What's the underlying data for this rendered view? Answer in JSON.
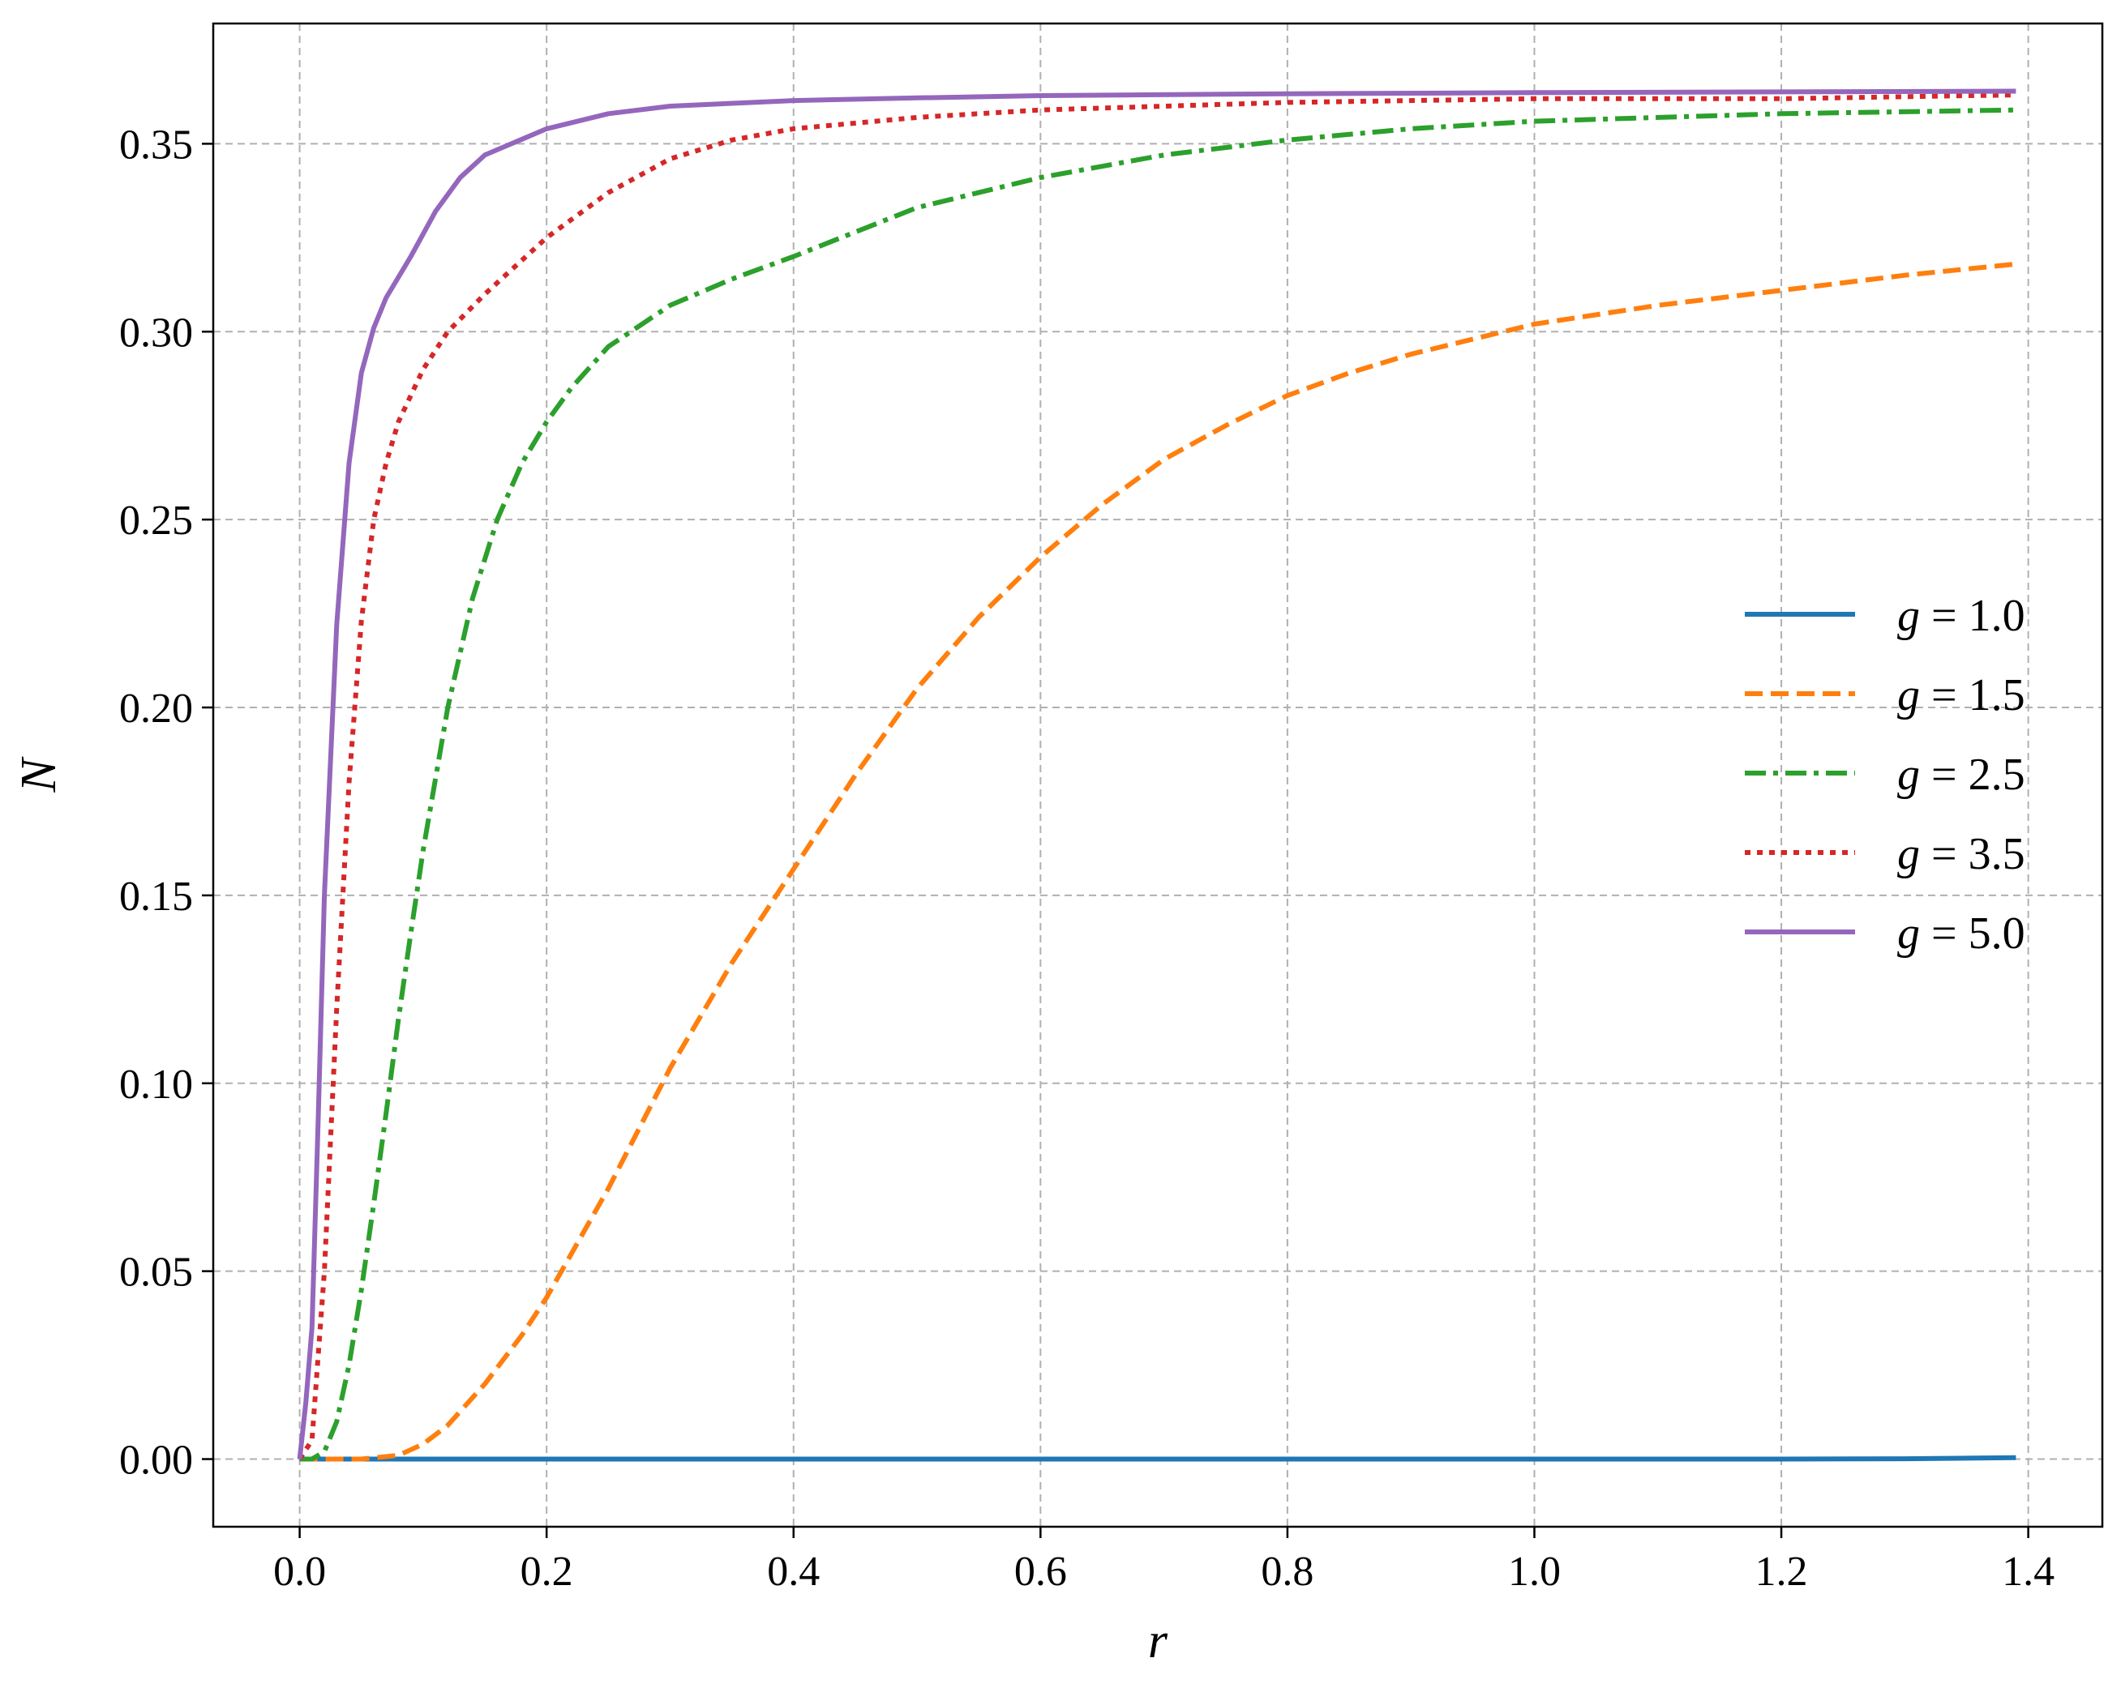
{
  "chart_data": {
    "type": "line",
    "title": "",
    "xlabel": "r",
    "ylabel": "N",
    "xlim": [
      -0.07,
      1.46
    ],
    "ylim": [
      -0.018,
      0.382
    ],
    "xticks": [
      0.0,
      0.2,
      0.4,
      0.6,
      0.8,
      1.0,
      1.2,
      1.4
    ],
    "yticks": [
      0.0,
      0.05,
      0.1,
      0.15,
      0.2,
      0.25,
      0.3,
      0.35
    ],
    "xtick_labels": [
      "0.0",
      "0.2",
      "0.4",
      "0.6",
      "0.8",
      "1.0",
      "1.2",
      "1.4"
    ],
    "ytick_labels": [
      "0.00",
      "0.05",
      "0.10",
      "0.15",
      "0.20",
      "0.25",
      "0.30",
      "0.35"
    ],
    "grid": true,
    "legend_position": "center-right",
    "series": [
      {
        "name": "g = 1.0",
        "var": "g",
        "eq": " = ",
        "value": "1.0",
        "color": "#1f77b4",
        "dash": "solid",
        "x": [
          0,
          0.2,
          0.4,
          0.6,
          0.8,
          1.0,
          1.2,
          1.3,
          1.39
        ],
        "y": [
          0,
          0,
          0,
          0,
          0,
          0,
          0,
          0.0001,
          0.0004
        ]
      },
      {
        "name": "g = 1.5",
        "var": "g",
        "eq": " = ",
        "value": "1.5",
        "color": "#ff7f0e",
        "dash": "dashed",
        "x": [
          0,
          0.05,
          0.08,
          0.1,
          0.12,
          0.15,
          0.18,
          0.2,
          0.25,
          0.3,
          0.35,
          0.4,
          0.45,
          0.5,
          0.55,
          0.6,
          0.65,
          0.7,
          0.75,
          0.8,
          0.85,
          0.9,
          0.95,
          1.0,
          1.1,
          1.2,
          1.3,
          1.39
        ],
        "y": [
          0,
          0,
          0.001,
          0.004,
          0.009,
          0.02,
          0.033,
          0.043,
          0.072,
          0.104,
          0.132,
          0.157,
          0.182,
          0.205,
          0.224,
          0.24,
          0.254,
          0.266,
          0.275,
          0.283,
          0.289,
          0.294,
          0.298,
          0.302,
          0.307,
          0.311,
          0.315,
          0.318
        ]
      },
      {
        "name": "g = 2.5",
        "var": "g",
        "eq": " = ",
        "value": "2.5",
        "color": "#2ca02c",
        "dash": "dashdot",
        "x": [
          0,
          0.01,
          0.02,
          0.03,
          0.04,
          0.05,
          0.06,
          0.07,
          0.08,
          0.09,
          0.1,
          0.12,
          0.14,
          0.16,
          0.18,
          0.2,
          0.22,
          0.25,
          0.3,
          0.35,
          0.4,
          0.5,
          0.6,
          0.7,
          0.8,
          0.9,
          1.0,
          1.2,
          1.39
        ],
        "y": [
          0,
          0.0,
          0.002,
          0.01,
          0.025,
          0.045,
          0.068,
          0.092,
          0.117,
          0.14,
          0.162,
          0.2,
          0.229,
          0.25,
          0.265,
          0.276,
          0.285,
          0.296,
          0.307,
          0.314,
          0.32,
          0.333,
          0.341,
          0.347,
          0.351,
          0.354,
          0.356,
          0.358,
          0.359
        ]
      },
      {
        "name": "g = 3.5",
        "var": "g",
        "eq": " = ",
        "value": "3.5",
        "color": "#d62728",
        "dash": "dotted",
        "x": [
          0,
          0.01,
          0.02,
          0.03,
          0.04,
          0.05,
          0.06,
          0.07,
          0.08,
          0.1,
          0.12,
          0.15,
          0.2,
          0.25,
          0.3,
          0.35,
          0.4,
          0.5,
          0.6,
          0.8,
          1.0,
          1.2,
          1.39
        ],
        "y": [
          0,
          0.005,
          0.05,
          0.12,
          0.18,
          0.223,
          0.25,
          0.265,
          0.276,
          0.29,
          0.3,
          0.31,
          0.325,
          0.337,
          0.346,
          0.351,
          0.354,
          0.357,
          0.359,
          0.361,
          0.362,
          0.362,
          0.363
        ]
      },
      {
        "name": "g = 5.0",
        "var": "g",
        "eq": " = ",
        "value": "5.0",
        "color": "#9467bd",
        "dash": "solid",
        "x": [
          0,
          0.005,
          0.01,
          0.015,
          0.02,
          0.03,
          0.04,
          0.05,
          0.06,
          0.07,
          0.09,
          0.11,
          0.13,
          0.15,
          0.2,
          0.25,
          0.3,
          0.4,
          0.5,
          0.6,
          0.8,
          1.0,
          1.2,
          1.39
        ],
        "y": [
          0,
          0.015,
          0.035,
          0.09,
          0.15,
          0.222,
          0.265,
          0.289,
          0.301,
          0.309,
          0.32,
          0.332,
          0.341,
          0.347,
          0.354,
          0.358,
          0.36,
          0.3615,
          0.3622,
          0.3628,
          0.3633,
          0.3636,
          0.3638,
          0.364
        ]
      }
    ]
  }
}
